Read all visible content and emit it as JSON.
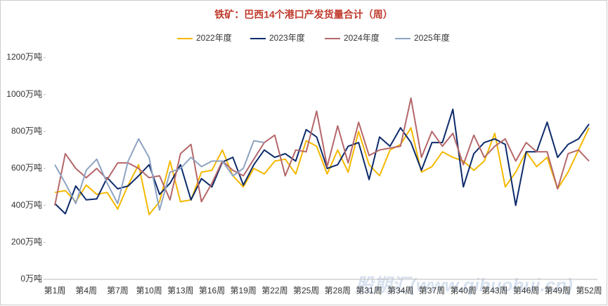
{
  "chart_data": {
    "type": "line",
    "title": "铁矿：巴西14个港口产发货量合计（周）",
    "watermark": "股期汇(www.qihuohui.cn)",
    "categories": [
      "第1周",
      null,
      null,
      "第4周",
      null,
      null,
      "第7周",
      null,
      null,
      "第10周",
      null,
      null,
      "第13周",
      null,
      null,
      "第16周",
      null,
      null,
      "第19周",
      null,
      null,
      "第22周",
      null,
      null,
      "第25周",
      null,
      null,
      "第28周",
      null,
      null,
      "第31周",
      null,
      null,
      "第34周",
      null,
      null,
      "第37周",
      null,
      null,
      "第40周",
      null,
      null,
      "第43周",
      null,
      null,
      "第46周",
      null,
      null,
      "第49周",
      null,
      null,
      "第52周"
    ],
    "series": [
      {
        "name": "2022年度",
        "color": "#f5b800",
        "values": [
          470,
          480,
          420,
          510,
          460,
          470,
          380,
          510,
          620,
          350,
          420,
          640,
          420,
          430,
          580,
          590,
          700,
          560,
          500,
          600,
          570,
          640,
          650,
          570,
          750,
          720,
          570,
          700,
          580,
          800,
          620,
          560,
          700,
          730,
          820,
          580,
          610,
          690,
          660,
          640,
          590,
          640,
          790,
          500,
          580,
          690,
          610,
          660,
          490,
          580,
          700,
          820
        ]
      },
      {
        "name": "2023年度",
        "color": "#0d2b6b",
        "values": [
          410,
          355,
          505,
          430,
          435,
          550,
          490,
          505,
          560,
          620,
          460,
          520,
          620,
          430,
          545,
          500,
          635,
          660,
          510,
          620,
          700,
          660,
          680,
          640,
          810,
          770,
          600,
          620,
          720,
          740,
          540,
          770,
          720,
          820,
          740,
          590,
          740,
          740,
          920,
          500,
          680,
          740,
          760,
          730,
          400,
          690,
          690,
          850,
          660,
          730,
          760,
          840
        ]
      },
      {
        "name": "2024年度",
        "color": "#b5676a",
        "values": [
          400,
          680,
          600,
          550,
          600,
          540,
          630,
          630,
          600,
          550,
          560,
          430,
          680,
          730,
          420,
          520,
          640,
          590,
          560,
          650,
          740,
          780,
          560,
          700,
          690,
          910,
          610,
          830,
          630,
          850,
          670,
          700,
          710,
          720,
          980,
          660,
          800,
          720,
          790,
          620,
          780,
          660,
          720,
          760,
          640,
          740,
          690,
          690,
          490,
          680,
          700,
          640
        ]
      },
      {
        "name": "2025年度",
        "color": "#8ea3c2",
        "values": [
          620,
          520,
          410,
          590,
          650,
          520,
          410,
          640,
          760,
          660,
          375,
          580,
          600,
          660,
          610,
          640,
          640,
          560,
          600,
          750,
          740,
          null,
          null,
          null,
          null,
          null,
          null,
          null,
          null,
          null,
          null,
          null,
          null,
          null,
          null,
          null,
          null,
          null,
          null,
          null,
          null,
          null,
          null,
          null,
          null,
          null,
          null,
          null,
          null,
          null,
          null,
          null
        ]
      }
    ],
    "ylim": [
      0,
      1200
    ],
    "yticks": [
      {
        "value": 0,
        "label": "0万吨"
      },
      {
        "value": 200,
        "label": "200万吨"
      },
      {
        "value": 400,
        "label": "400万吨"
      },
      {
        "value": 600,
        "label": "600万吨"
      },
      {
        "value": 800,
        "label": "800万吨"
      },
      {
        "value": 1000,
        "label": "1000万吨"
      },
      {
        "value": 1200,
        "label": "1200万吨"
      }
    ],
    "grid": false
  }
}
